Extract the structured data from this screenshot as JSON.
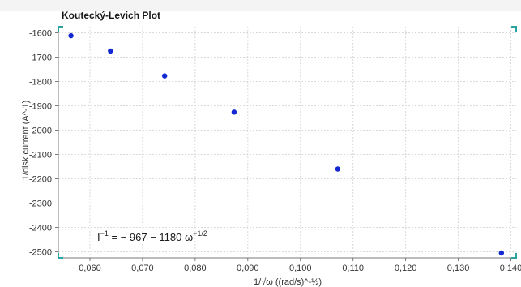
{
  "chart_data": {
    "type": "scatter",
    "title": "Koutecký-Levich Plot",
    "xlabel": "1/√ω ((rad/s)^-½)",
    "ylabel": "1/disk current (A^-1)",
    "xlim": [
      0.054,
      0.141
    ],
    "ylim": [
      -2525,
      -1575
    ],
    "xticks": [
      0.06,
      0.07,
      0.08,
      0.09,
      0.1,
      0.11,
      0.12,
      0.13,
      0.14
    ],
    "xtick_labels": [
      "0,060",
      "0,070",
      "0,080",
      "0,090",
      "0,100",
      "0,110",
      "0,120",
      "0,130",
      "0,140"
    ],
    "yticks": [
      -1600,
      -1700,
      -1800,
      -1900,
      -2000,
      -2100,
      -2200,
      -2300,
      -2400,
      -2500
    ],
    "ytick_labels": [
      "-1600",
      "-1700",
      "-1800",
      "-1900",
      "-2000",
      "-2100",
      "-2200",
      "-2300",
      "-2400",
      "-2500"
    ],
    "grid": true,
    "series": [
      {
        "x": [
          0.0564,
          0.0639,
          0.0742,
          0.0874,
          0.1071,
          0.1382
        ],
        "y": [
          -1612,
          -1675,
          -1777,
          -1926,
          -2160,
          -2505
        ],
        "color": "#1428d2"
      }
    ],
    "fit_line": {
      "intercept": -967,
      "slope": -1180,
      "x_range": [
        0.0564,
        0.1382
      ],
      "color": "#2aa3a3"
    },
    "annotation": {
      "text_main": "I",
      "sup1": "−1",
      "text_mid": " = − 967 − 1180  ω",
      "sup2": "−1/2"
    }
  }
}
